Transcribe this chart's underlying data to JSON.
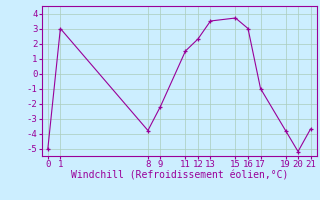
{
  "x": [
    0,
    1,
    8,
    9,
    11,
    12,
    13,
    15,
    16,
    17,
    19,
    20,
    21
  ],
  "y": [
    -5,
    3,
    -3.8,
    -2.2,
    1.5,
    2.3,
    3.5,
    3.7,
    3.0,
    -1.0,
    -3.8,
    -5.2,
    -3.7
  ],
  "xlim": [
    -0.5,
    21.5
  ],
  "ylim": [
    -5.5,
    4.5
  ],
  "xticks": [
    0,
    1,
    8,
    9,
    11,
    12,
    13,
    15,
    16,
    17,
    19,
    20,
    21
  ],
  "yticks": [
    -5,
    -4,
    -3,
    -2,
    -1,
    0,
    1,
    2,
    3,
    4
  ],
  "xlabel": "Windchill (Refroidissement éolien,°C)",
  "line_color": "#990099",
  "marker": "+",
  "bg_color": "#cceeff",
  "grid_color": "#aaccbb",
  "tick_fontsize": 6.5,
  "xlabel_fontsize": 7
}
